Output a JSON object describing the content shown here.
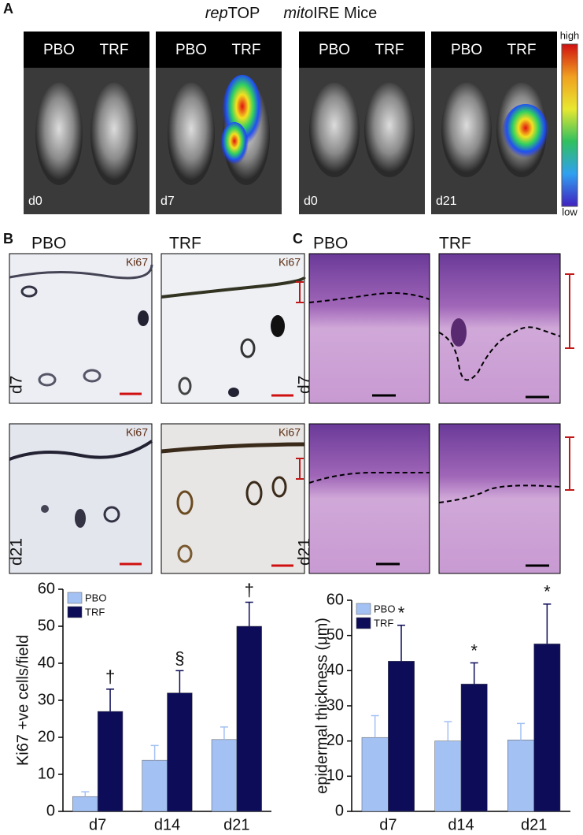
{
  "panel_labels": [
    "A",
    "B",
    "C"
  ],
  "panel_a": {
    "title": [
      "rep",
      "TOP",
      "mito",
      "IRE Mice"
    ],
    "groups": [
      "PBO",
      "TRF"
    ],
    "days": [
      "d0",
      "d7",
      "d0",
      "d21"
    ],
    "scale": [
      "high",
      "low"
    ]
  },
  "panel_b": {
    "groups": [
      "PBO",
      "TRF"
    ],
    "stain": "Ki67",
    "days": [
      "d7",
      "d21"
    ]
  },
  "panel_c": {
    "groups": [
      "PBO",
      "TRF"
    ],
    "days": [
      "d7",
      "d21"
    ]
  },
  "chart_data": [
    {
      "type": "bar",
      "y_label": "Ki67 +ve cells/field",
      "categories": [
        "d7",
        "d14",
        "d21"
      ],
      "series": [
        {
          "name": "PBO",
          "color": "#a3c1f3",
          "values": [
            4,
            13.8,
            19.4
          ],
          "errors": [
            1.3,
            4,
            3.4
          ]
        },
        {
          "name": "TRF",
          "color": "#0c0c58",
          "values": [
            27,
            32,
            50
          ],
          "errors": [
            6,
            6,
            6.5
          ]
        }
      ],
      "annotations": [
        "†",
        "§",
        "†"
      ],
      "ylim": [
        0,
        60
      ],
      "yticks": [
        0,
        10,
        20,
        30,
        40,
        50,
        60
      ]
    },
    {
      "type": "bar",
      "y_label": "epidermal thickness (μm)",
      "categories": [
        "d7",
        "d14",
        "d21"
      ],
      "series": [
        {
          "name": "PBO",
          "color": "#a3c1f3",
          "values": [
            21,
            20,
            20.3
          ],
          "errors": [
            6.2,
            5.5,
            4.7
          ]
        },
        {
          "name": "TRF",
          "color": "#0c0c58",
          "values": [
            42.7,
            36.2,
            47.6
          ],
          "errors": [
            10.2,
            6,
            11.3
          ]
        }
      ],
      "annotations": [
        "*",
        "*",
        "*"
      ],
      "ylim": [
        0,
        60
      ],
      "yticks": [
        0,
        10,
        20,
        30,
        40,
        50,
        60
      ]
    }
  ]
}
